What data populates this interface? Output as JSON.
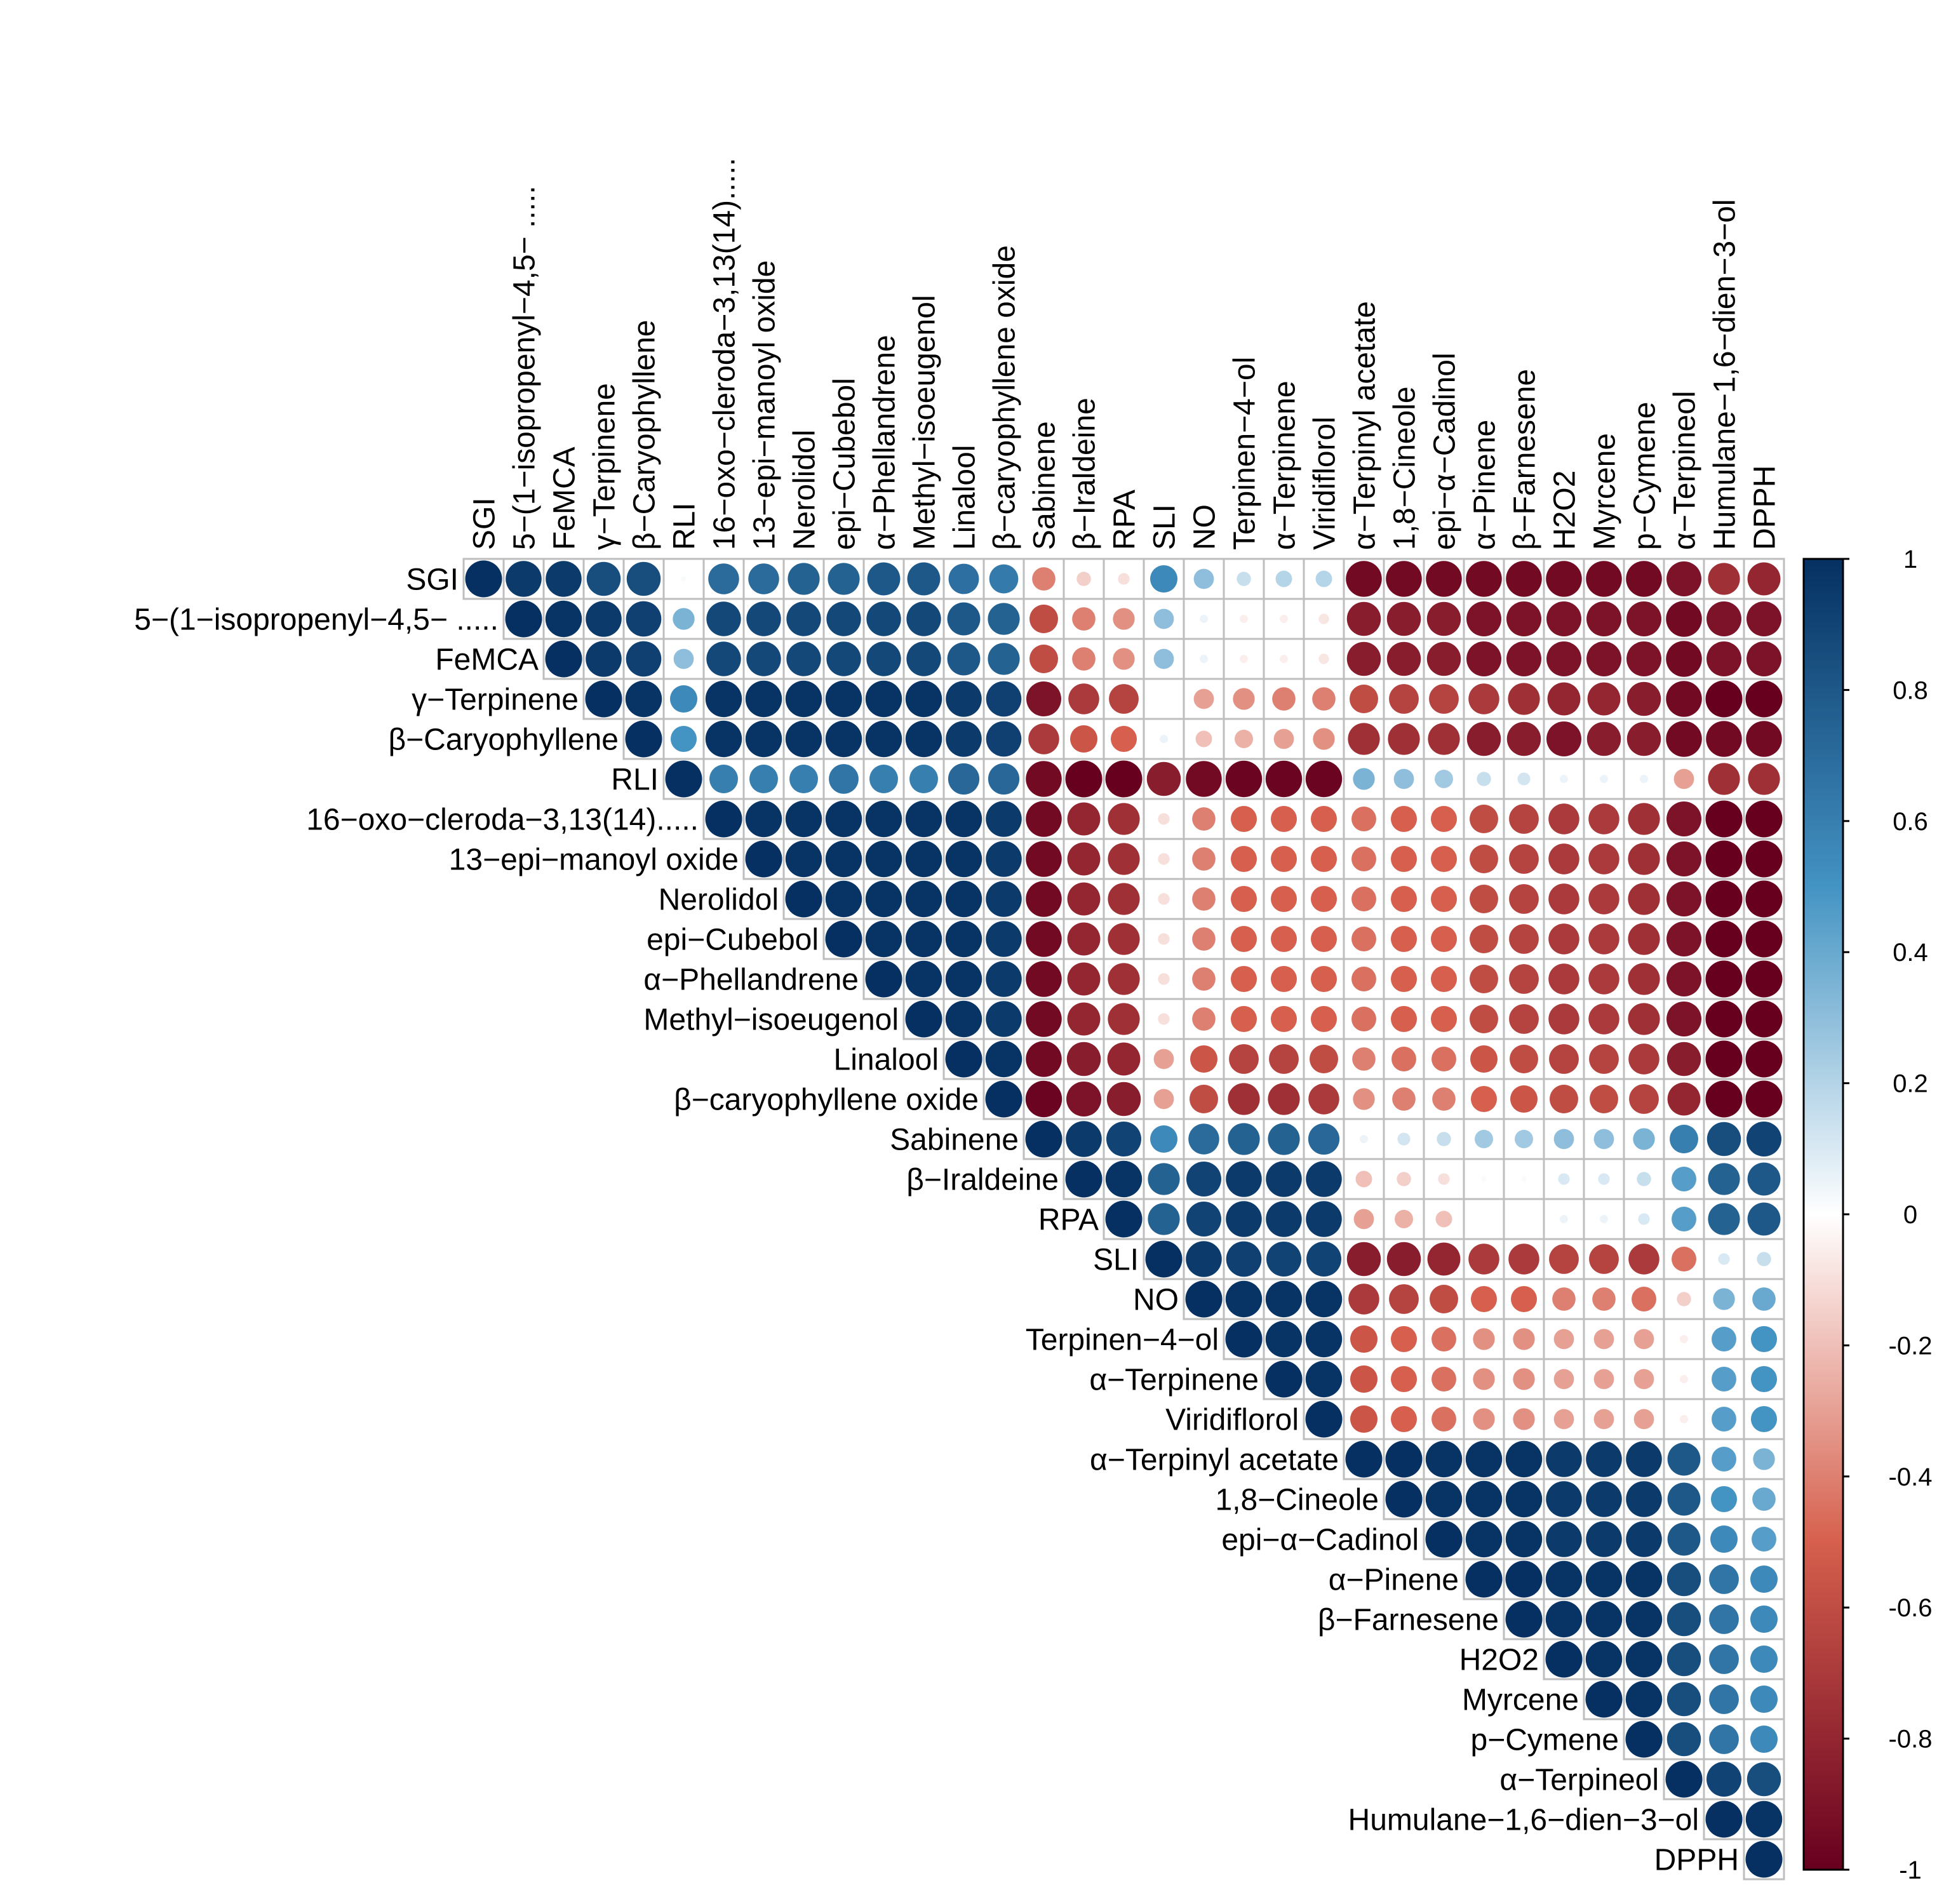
{
  "chart_data": {
    "type": "heatmap",
    "style": "corrplot-circle-upper",
    "title": "",
    "variables": [
      "SGI",
      "5−(1−isopropenyl−4,5− .....",
      "FeMCA",
      "γ−Terpinene",
      "β−Caryophyllene",
      "RLI",
      "16−oxo−cleroda−3,13(14).....",
      "13−epi−manoyl oxide",
      "Nerolidol",
      "epi−Cubebol",
      "α−Phellandrene",
      "Methyl−isoeugenol",
      "Linalool",
      "β−caryophyllene oxide",
      "Sabinene",
      "β−Iraldeine",
      "RPA",
      "SLI",
      "NO",
      "Terpinen−4−ol",
      "α−Terpinene",
      "Viridiflorol",
      "α−Terpinyl acetate",
      "1,8−Cineole",
      "epi−α−Cadinol",
      "α−Pinene",
      "β−Farnesene",
      "H2O2",
      "Myrcene",
      "p−Cymene",
      "α−Terpineol",
      "Humulane−1,6−dien−3−ol",
      "DPPH"
    ],
    "matrix_upper_rows": [
      [
        1.0,
        0.95,
        0.95,
        0.85,
        0.85,
        0.02,
        0.7,
        0.7,
        0.75,
        0.75,
        0.8,
        0.8,
        0.68,
        0.62,
        -0.4,
        -0.15,
        -0.1,
        0.55,
        0.3,
        0.15,
        0.2,
        0.2,
        -0.95,
        -0.95,
        -0.95,
        -0.95,
        -0.95,
        -0.95,
        -0.95,
        -0.95,
        -0.9,
        -0.75,
        -0.8
      ],
      [
        1.0,
        0.98,
        0.95,
        0.92,
        0.35,
        0.88,
        0.88,
        0.88,
        0.88,
        0.88,
        0.88,
        0.8,
        0.75,
        -0.6,
        -0.4,
        -0.35,
        0.3,
        0.05,
        -0.05,
        -0.05,
        -0.08,
        -0.85,
        -0.85,
        -0.85,
        -0.9,
        -0.9,
        -0.9,
        -0.9,
        -0.9,
        -0.95,
        -0.9,
        -0.9
      ],
      [
        1.0,
        0.95,
        0.92,
        0.3,
        0.88,
        0.88,
        0.88,
        0.88,
        0.88,
        0.88,
        0.8,
        0.75,
        -0.6,
        -0.4,
        -0.35,
        0.3,
        0.05,
        -0.05,
        -0.05,
        -0.08,
        -0.85,
        -0.85,
        -0.85,
        -0.9,
        -0.9,
        -0.9,
        -0.9,
        -0.9,
        -0.95,
        -0.9,
        -0.9
      ],
      [
        1.0,
        0.98,
        0.55,
        0.98,
        0.98,
        0.98,
        0.98,
        0.98,
        0.98,
        0.95,
        0.92,
        -0.9,
        -0.7,
        -0.65,
        0.0,
        -0.3,
        -0.35,
        -0.4,
        -0.4,
        -0.6,
        -0.65,
        -0.65,
        -0.7,
        -0.75,
        -0.8,
        -0.8,
        -0.85,
        -0.95,
        -1.0,
        -1.0
      ],
      [
        1.0,
        0.5,
        0.98,
        0.98,
        0.98,
        0.98,
        0.98,
        0.98,
        0.95,
        0.92,
        -0.7,
        -0.55,
        -0.5,
        0.05,
        -0.2,
        -0.25,
        -0.3,
        -0.35,
        -0.75,
        -0.75,
        -0.75,
        -0.85,
        -0.85,
        -0.9,
        -0.85,
        -0.85,
        -0.95,
        -0.95,
        -0.95
      ],
      [
        1.0,
        0.6,
        0.6,
        0.6,
        0.65,
        0.6,
        0.6,
        0.72,
        0.72,
        -0.95,
        -1.0,
        -1.0,
        -0.85,
        -0.95,
        -0.98,
        -0.98,
        -0.98,
        0.35,
        0.3,
        0.25,
        0.15,
        0.12,
        0.05,
        0.05,
        0.05,
        -0.3,
        -0.75,
        -0.75
      ],
      [
        1.0,
        0.98,
        0.98,
        0.98,
        0.98,
        0.98,
        0.98,
        0.95,
        -0.95,
        -0.8,
        -0.75,
        -0.1,
        -0.4,
        -0.5,
        -0.5,
        -0.5,
        -0.45,
        -0.5,
        -0.5,
        -0.6,
        -0.65,
        -0.7,
        -0.7,
        -0.75,
        -0.9,
        -1.0,
        -1.0
      ],
      [
        1.0,
        0.98,
        0.98,
        0.98,
        0.98,
        0.98,
        0.95,
        -0.95,
        -0.8,
        -0.75,
        -0.1,
        -0.4,
        -0.5,
        -0.5,
        -0.5,
        -0.45,
        -0.5,
        -0.5,
        -0.6,
        -0.65,
        -0.7,
        -0.7,
        -0.75,
        -0.9,
        -1.0,
        -1.0
      ],
      [
        1.0,
        0.98,
        0.98,
        0.98,
        0.98,
        0.95,
        -0.95,
        -0.8,
        -0.75,
        -0.1,
        -0.4,
        -0.5,
        -0.5,
        -0.5,
        -0.45,
        -0.5,
        -0.5,
        -0.6,
        -0.65,
        -0.7,
        -0.7,
        -0.75,
        -0.9,
        -1.0,
        -1.0
      ],
      [
        1.0,
        0.98,
        0.98,
        0.98,
        0.95,
        -0.95,
        -0.8,
        -0.75,
        -0.1,
        -0.4,
        -0.5,
        -0.5,
        -0.5,
        -0.45,
        -0.5,
        -0.5,
        -0.6,
        -0.65,
        -0.7,
        -0.7,
        -0.75,
        -0.9,
        -1.0,
        -1.0
      ],
      [
        1.0,
        0.98,
        0.98,
        0.95,
        -0.95,
        -0.8,
        -0.75,
        -0.1,
        -0.4,
        -0.5,
        -0.5,
        -0.5,
        -0.45,
        -0.5,
        -0.5,
        -0.6,
        -0.65,
        -0.7,
        -0.7,
        -0.75,
        -0.9,
        -1.0,
        -1.0
      ],
      [
        1.0,
        0.98,
        0.95,
        -0.95,
        -0.8,
        -0.75,
        -0.1,
        -0.4,
        -0.5,
        -0.5,
        -0.5,
        -0.45,
        -0.5,
        -0.5,
        -0.6,
        -0.65,
        -0.7,
        -0.7,
        -0.75,
        -0.9,
        -1.0,
        -1.0
      ],
      [
        1.0,
        0.98,
        -0.95,
        -0.85,
        -0.8,
        -0.3,
        -0.55,
        -0.65,
        -0.65,
        -0.6,
        -0.4,
        -0.45,
        -0.45,
        -0.55,
        -0.6,
        -0.65,
        -0.65,
        -0.7,
        -0.85,
        -1.0,
        -1.0
      ],
      [
        1.0,
        -0.98,
        -0.9,
        -0.85,
        -0.3,
        -0.6,
        -0.75,
        -0.75,
        -0.7,
        -0.35,
        -0.4,
        -0.4,
        -0.5,
        -0.55,
        -0.6,
        -0.6,
        -0.65,
        -0.8,
        -1.0,
        -1.0
      ],
      [
        1.0,
        0.95,
        0.9,
        0.55,
        0.7,
        0.75,
        0.75,
        0.72,
        0.05,
        0.12,
        0.15,
        0.25,
        0.25,
        0.3,
        0.3,
        0.35,
        0.6,
        0.85,
        0.9
      ],
      [
        1.0,
        0.98,
        0.75,
        0.9,
        0.95,
        0.95,
        0.95,
        -0.2,
        -0.15,
        -0.1,
        0.02,
        0.02,
        0.1,
        0.1,
        0.15,
        0.45,
        0.75,
        0.8
      ],
      [
        1.0,
        0.75,
        0.9,
        0.95,
        0.95,
        0.95,
        -0.3,
        -0.25,
        -0.2,
        0.0,
        0.0,
        0.05,
        0.05,
        0.1,
        0.45,
        0.75,
        0.8
      ],
      [
        1.0,
        0.95,
        0.92,
        0.9,
        0.9,
        -0.85,
        -0.85,
        -0.8,
        -0.7,
        -0.7,
        -0.65,
        -0.65,
        -0.7,
        -0.45,
        0.1,
        0.15
      ],
      [
        1.0,
        0.98,
        0.98,
        0.98,
        -0.7,
        -0.65,
        -0.6,
        -0.5,
        -0.5,
        -0.4,
        -0.4,
        -0.45,
        -0.15,
        0.35,
        0.4
      ],
      [
        1.0,
        0.98,
        0.98,
        -0.55,
        -0.5,
        -0.45,
        -0.35,
        -0.35,
        -0.3,
        -0.3,
        -0.3,
        -0.05,
        0.45,
        0.5
      ],
      [
        1.0,
        0.98,
        -0.55,
        -0.5,
        -0.45,
        -0.35,
        -0.35,
        -0.3,
        -0.3,
        -0.3,
        -0.05,
        0.45,
        0.5
      ],
      [
        1.0,
        -0.55,
        -0.5,
        -0.45,
        -0.35,
        -0.35,
        -0.3,
        -0.3,
        -0.3,
        -0.05,
        0.45,
        0.5
      ],
      [
        1.0,
        1.0,
        0.98,
        0.98,
        0.98,
        0.95,
        0.95,
        0.95,
        0.8,
        0.45,
        0.35
      ],
      [
        1.0,
        0.98,
        0.98,
        0.98,
        0.95,
        0.95,
        0.95,
        0.8,
        0.5,
        0.4
      ],
      [
        1.0,
        0.98,
        0.98,
        0.95,
        0.95,
        0.95,
        0.8,
        0.55,
        0.45
      ],
      [
        1.0,
        1.0,
        0.98,
        0.98,
        0.98,
        0.85,
        0.65,
        0.55
      ],
      [
        1.0,
        0.98,
        0.98,
        0.98,
        0.85,
        0.65,
        0.55
      ],
      [
        1.0,
        0.98,
        0.98,
        0.85,
        0.65,
        0.55
      ],
      [
        1.0,
        0.98,
        0.85,
        0.65,
        0.55
      ],
      [
        1.0,
        0.85,
        0.65,
        0.55
      ],
      [
        1.0,
        0.9,
        0.85
      ],
      [
        1.0,
        0.98
      ],
      [
        1.0
      ]
    ],
    "colorbar": {
      "range": [
        -1,
        1
      ],
      "ticks": [
        "1",
        "0.8",
        "0.6",
        "0.4",
        "0.2",
        "0",
        "-0.2",
        "-0.4",
        "-0.6",
        "-0.8",
        "-1"
      ],
      "colors": {
        "neg_strong": "#67001F",
        "neg_mid": "#D6604D",
        "neutral": "#FFFFFF",
        "pos_mid": "#4393C3",
        "pos_strong": "#053061"
      }
    },
    "grid_color": "#BEBEBE",
    "legend_position": "right"
  }
}
